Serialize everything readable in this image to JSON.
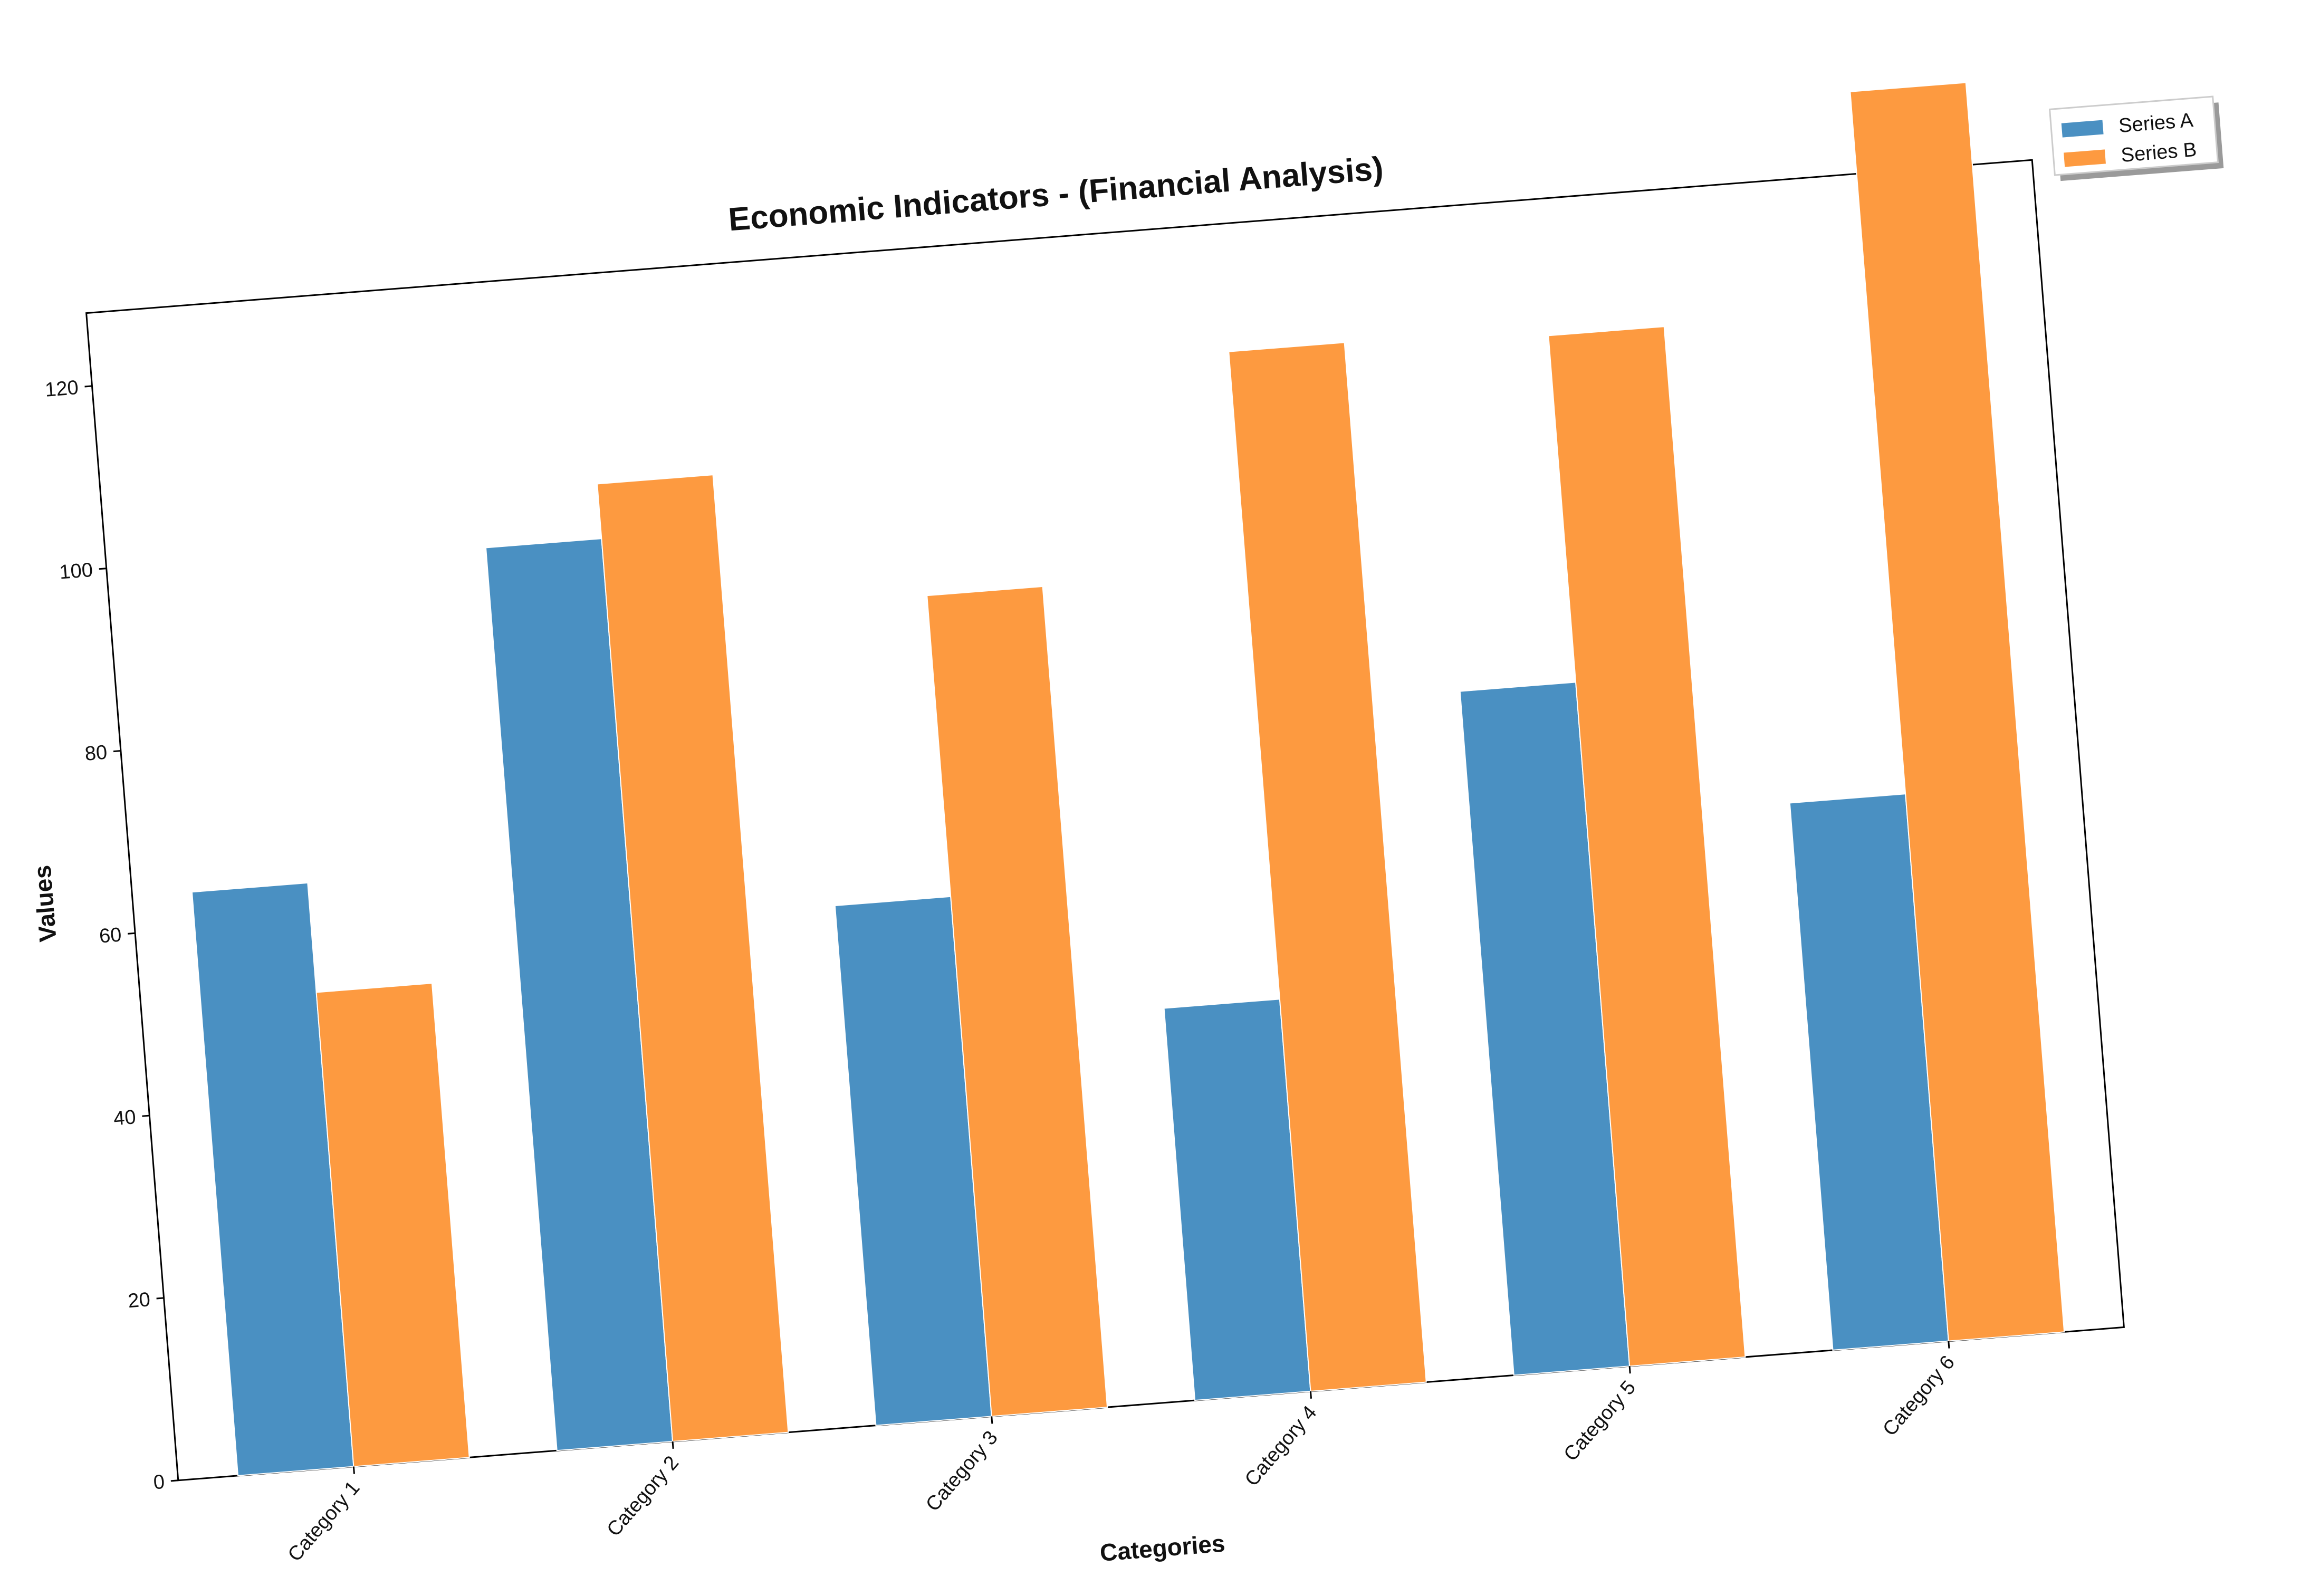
{
  "chart_data": {
    "type": "bar",
    "title": "Economic Indicators - (Financial Analysis)",
    "xlabel": "Categories",
    "ylabel": "Values",
    "categories": [
      "Category 1",
      "Category 2",
      "Category 3",
      "Category 4",
      "Category 5",
      "Category 6"
    ],
    "series": [
      {
        "name": "Series A",
        "color": "#4a90c2",
        "values": [
          64,
          99,
          57,
          43,
          75,
          60
        ]
      },
      {
        "name": "Series B",
        "color": "#fd9a40",
        "values": [
          52,
          105,
          90,
          114,
          113,
          137
        ]
      }
    ],
    "ylim": [
      0,
      128
    ],
    "yticks": [
      0,
      20,
      40,
      60,
      80,
      100,
      120
    ],
    "grid": false,
    "legend_position": "top-right, outside plot",
    "rotation_degrees": -4.5
  }
}
